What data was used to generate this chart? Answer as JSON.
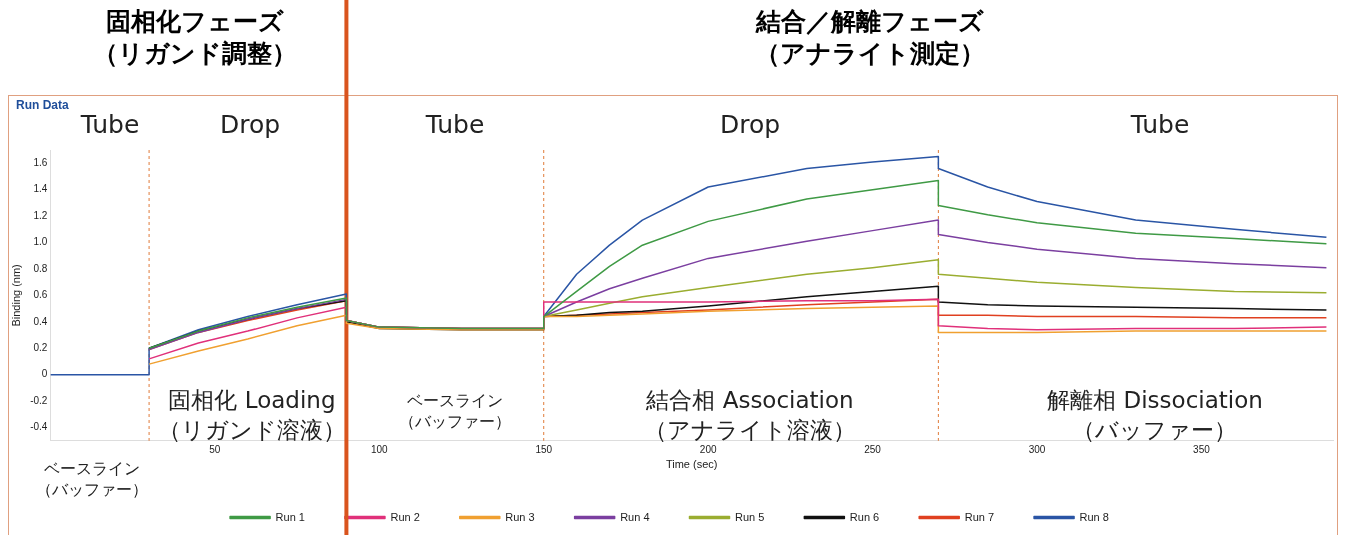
{
  "chart_data": {
    "type": "line",
    "title": "Run Data",
    "xlabel": "Time (sec)",
    "ylabel": "Binding (nm)",
    "xlim": [
      0,
      390
    ],
    "xticks": [
      50,
      100,
      150,
      200,
      250,
      300,
      350
    ],
    "ylim": [
      -0.5,
      1.7
    ],
    "yticks": [
      -0.4,
      -0.2,
      0,
      0.2,
      0.4,
      0.6,
      0.8,
      {
        "value": 1,
        "label": "1.0"
      },
      1.2,
      1.4,
      1.6
    ],
    "x": [
      0,
      30,
      30,
      45,
      60,
      75,
      90,
      90,
      100,
      125,
      150,
      150,
      160,
      170,
      180,
      200,
      230,
      250,
      270,
      270,
      285,
      300,
      330,
      360,
      388
    ],
    "series": [
      {
        "name": "Run 1",
        "color": "#3f9a45",
        "values": [
          null,
          null,
          0.2,
          0.33,
          0.43,
          0.51,
          0.58,
          0.41,
          0.36,
          0.35,
          0.35,
          0.44,
          0.63,
          0.82,
          0.98,
          1.16,
          1.33,
          1.4,
          1.47,
          1.28,
          1.21,
          1.15,
          1.07,
          1.03,
          0.99
        ]
      },
      {
        "name": "Run 2",
        "color": "#e0307a",
        "values": [
          null,
          null,
          0.12,
          0.24,
          0.33,
          0.43,
          0.51,
          0.41,
          0.36,
          0.35,
          0.35,
          0.55,
          0.55,
          0.55,
          0.55,
          0.55,
          0.56,
          0.56,
          0.57,
          0.37,
          0.35,
          0.34,
          0.35,
          0.35,
          0.36
        ]
      },
      {
        "name": "Run 3",
        "color": "#f0a030",
        "values": [
          null,
          null,
          0.08,
          0.18,
          0.27,
          0.37,
          0.45,
          0.39,
          0.35,
          0.34,
          0.34,
          0.44,
          0.44,
          0.45,
          0.46,
          0.48,
          0.5,
          0.51,
          0.52,
          0.32,
          0.32,
          0.32,
          0.33,
          0.33,
          0.33
        ]
      },
      {
        "name": "Run 4",
        "color": "#7b3fa0",
        "values": [
          null,
          null,
          0.19,
          0.32,
          0.42,
          0.5,
          0.57,
          0.41,
          0.36,
          0.35,
          0.35,
          0.44,
          0.55,
          0.65,
          0.73,
          0.88,
          1.01,
          1.09,
          1.17,
          1.06,
          1.0,
          0.95,
          0.88,
          0.84,
          0.81
        ]
      },
      {
        "name": "Run 5",
        "color": "#9aad30",
        "values": [
          null,
          null,
          null,
          null,
          null,
          null,
          null,
          0.41,
          0.36,
          0.35,
          0.35,
          0.44,
          0.49,
          0.54,
          0.59,
          0.66,
          0.76,
          0.81,
          0.87,
          0.76,
          0.73,
          0.7,
          0.66,
          0.63,
          0.62
        ]
      },
      {
        "name": "Run 6",
        "color": "#111111",
        "values": [
          null,
          null,
          0.2,
          0.33,
          0.42,
          0.5,
          0.56,
          0.4,
          0.35,
          0.34,
          0.34,
          0.44,
          0.45,
          0.47,
          0.48,
          0.52,
          0.59,
          0.63,
          0.67,
          0.55,
          0.53,
          0.52,
          0.51,
          0.5,
          0.49
        ]
      },
      {
        "name": "Run 7",
        "color": "#e04020",
        "values": [
          null,
          null,
          0.19,
          0.32,
          0.41,
          0.49,
          0.56,
          0.41,
          0.36,
          0.35,
          0.35,
          0.44,
          0.45,
          0.46,
          0.47,
          0.49,
          0.53,
          0.55,
          0.57,
          0.45,
          0.45,
          0.44,
          0.44,
          0.43,
          0.43
        ]
      },
      {
        "name": "Run 8",
        "color": "#2a55a5",
        "values": [
          0,
          0,
          0.2,
          0.34,
          0.44,
          0.53,
          0.61,
          0.41,
          0.36,
          0.35,
          0.35,
          0.44,
          0.76,
          0.98,
          1.17,
          1.42,
          1.56,
          1.61,
          1.65,
          1.56,
          1.42,
          1.31,
          1.17,
          1.1,
          1.04
        ]
      }
    ],
    "ref_lines": [
      {
        "axis": "x",
        "value": 30,
        "color": "#e07b39",
        "line_style": "dashed"
      },
      {
        "axis": "x",
        "value": 90,
        "color": "#d9541e",
        "line_style": "solid"
      },
      {
        "axis": "x",
        "value": 150,
        "color": "#e07b39",
        "line_style": "dashed"
      },
      {
        "axis": "x",
        "value": 270,
        "color": "#e07b39",
        "line_style": "dashed"
      }
    ],
    "annotations": [
      "固相化フェーズ（リガンド調整）",
      "結合／解離フェーズ（アナライト測定）",
      "Tube",
      "Drop",
      "Tube",
      "Drop",
      "Tube",
      "固相化 Loading（リガンド溶液）",
      "ベースライン（バッファー）",
      "結合相 Association（アナライト溶液）",
      "解離相 Dissociation（バッファー）",
      "ベースライン（バッファー）"
    ],
    "legend": "bottom",
    "grid": false
  }
}
